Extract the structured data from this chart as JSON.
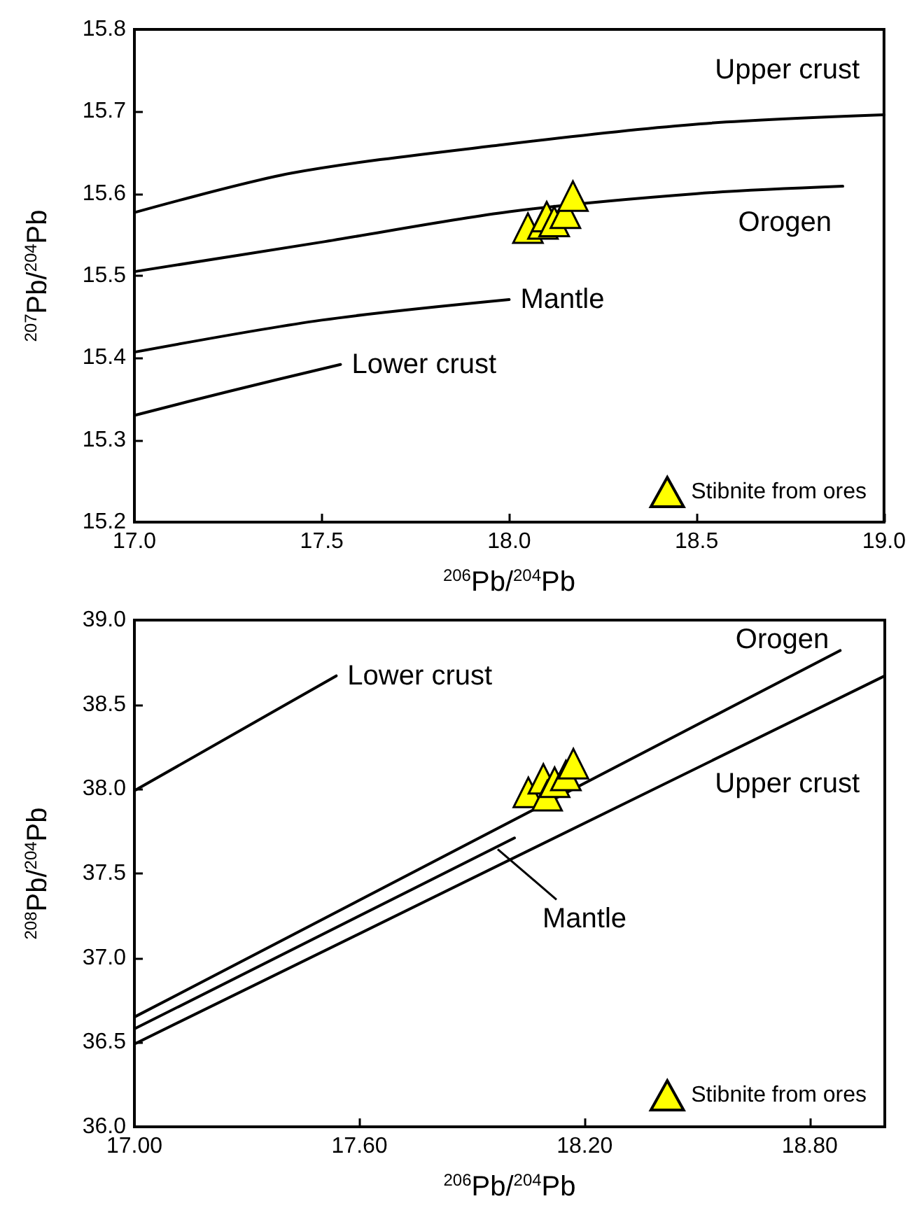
{
  "chart_data": [
    {
      "type": "scatter",
      "xlabel": "$^{206}$Pb/$^{204}$Pb",
      "ylabel": "$^{207}$Pb/$^{204}$Pb",
      "xlim": [
        17.0,
        19.0
      ],
      "xticks": [
        {
          "value": 17.0,
          "label": "17.0"
        },
        17.5,
        {
          "value": 18.0,
          "label": "18.0"
        },
        18.5,
        {
          "value": 19.0,
          "label": "19.0"
        }
      ],
      "ylim": [
        15.2,
        15.8
      ],
      "yticks": [
        15.2,
        15.3,
        15.4,
        15.5,
        15.6,
        15.7,
        15.8
      ],
      "grid": false,
      "legend": "bottom right",
      "series": [
        {
          "type": "line",
          "name": "Upper crust",
          "color": "#000000",
          "line_style": "solid",
          "x": [
            17.0,
            17.42,
            17.99,
            18.51,
            19.0
          ],
          "values": [
            15.577,
            15.625,
            15.66,
            15.685,
            15.696
          ]
        },
        {
          "type": "line",
          "name": "Orogen",
          "color": "#000000",
          "line_style": "solid",
          "x": [
            17.0,
            17.5,
            18.0,
            18.5,
            18.89
          ],
          "values": [
            15.505,
            15.541,
            15.578,
            15.6,
            15.609
          ]
        },
        {
          "type": "line",
          "name": "Mantle",
          "color": "#000000",
          "line_style": "solid",
          "x": [
            17.0,
            17.5,
            18.0
          ],
          "values": [
            15.407,
            15.446,
            15.471
          ]
        },
        {
          "type": "line",
          "name": "Lower crust",
          "color": "#000000",
          "line_style": "solid",
          "x": [
            17.0,
            17.25,
            17.55
          ],
          "values": [
            15.33,
            15.359,
            15.392
          ]
        },
        {
          "name": "Stibnite from ores",
          "color": "#ffff00",
          "marker": "triangle",
          "x": [
            18.05,
            18.09,
            18.1,
            18.12,
            18.15,
            18.17
          ],
          "values": [
            15.558,
            15.563,
            15.572,
            15.566,
            15.576,
            15.597
          ]
        }
      ]
    },
    {
      "type": "scatter",
      "xlabel": "$^{206}$Pb/$^{204}$Pb",
      "ylabel": "$^{208}$Pb/$^{204}$Pb",
      "xlim": [
        17.0,
        19.0
      ],
      "xticks": [
        {
          "value": 17.0,
          "label": "17.00"
        },
        {
          "value": 17.6,
          "label": "17.60"
        },
        {
          "value": 18.2,
          "label": "18.20"
        },
        {
          "value": 18.8,
          "label": "18.80"
        }
      ],
      "ylim": [
        36.0,
        39.0
      ],
      "yticks": [
        {
          "value": 36.0,
          "label": "36.0"
        },
        36.5,
        {
          "value": 37.0,
          "label": "37.0"
        },
        37.5,
        {
          "value": 38.0,
          "label": "38.0"
        },
        38.5,
        {
          "value": 39.0,
          "label": "39.0"
        }
      ],
      "grid": false,
      "legend": "bottom right",
      "series": [
        {
          "type": "line",
          "name": "Lower crust",
          "color": "#000000",
          "line_style": "solid",
          "x": [
            17.0,
            17.538
          ],
          "values": [
            37.99,
            38.67
          ]
        },
        {
          "type": "line",
          "name": "Orogen",
          "color": "#000000",
          "line_style": "solid",
          "x": [
            17.0,
            18.881
          ],
          "values": [
            36.65,
            38.82
          ]
        },
        {
          "type": "line",
          "name": "Upper crust",
          "color": "#000000",
          "line_style": "solid",
          "x": [
            17.0,
            19.0
          ],
          "values": [
            36.49,
            38.67
          ]
        },
        {
          "type": "line",
          "name": "Mantle",
          "color": "#000000",
          "line_style": "solid",
          "x": [
            17.0,
            18.013
          ],
          "values": [
            36.58,
            37.71
          ]
        },
        {
          "name": "Stibnite from ores",
          "color": "#ffff00",
          "marker": "triangle",
          "x": [
            18.05,
            18.09,
            18.1,
            18.12,
            18.15,
            18.17
          ],
          "values": [
            37.98,
            38.06,
            37.96,
            38.04,
            38.08,
            38.15
          ]
        }
      ]
    }
  ]
}
